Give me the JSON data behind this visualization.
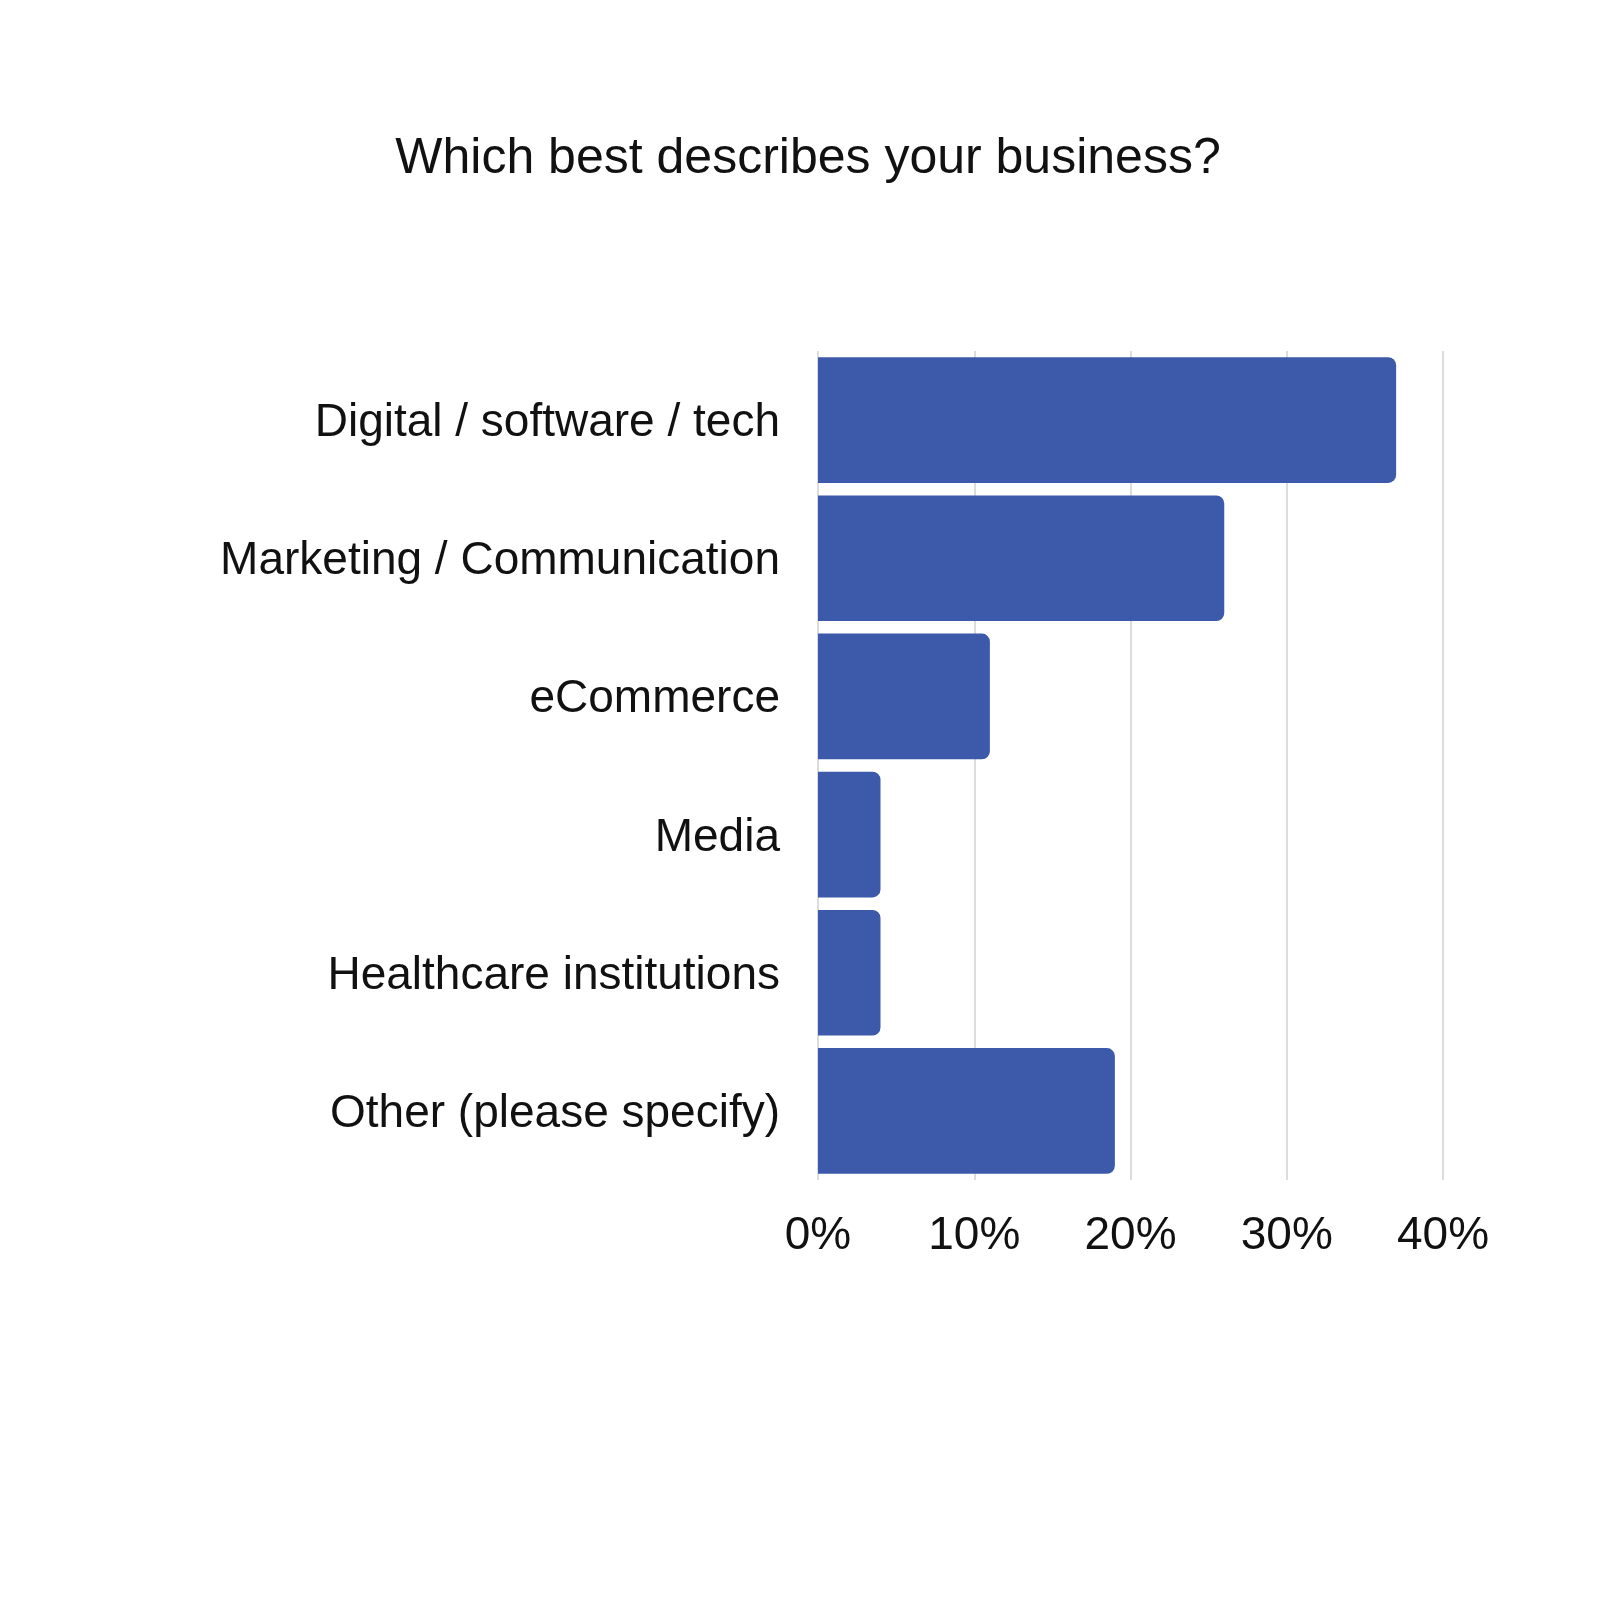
{
  "chart_data": {
    "type": "bar",
    "orientation": "horizontal",
    "title": "Which best describes your business?",
    "categories": [
      "Digital / software / tech",
      "Marketing / Communication",
      "eCommerce",
      "Media",
      "Healthcare institutions",
      "Other (please specify)"
    ],
    "values": [
      37,
      26,
      11,
      4,
      4,
      19
    ],
    "color": "#3d59aa",
    "xlim": [
      0,
      40
    ],
    "xticks": [
      {
        "value": 0,
        "label": "0%"
      },
      {
        "value": 10,
        "label": "10%"
      },
      {
        "value": 20,
        "label": "20%"
      },
      {
        "value": 30,
        "label": "30%"
      },
      {
        "value": 40,
        "label": "40%"
      }
    ],
    "grid": "x"
  }
}
